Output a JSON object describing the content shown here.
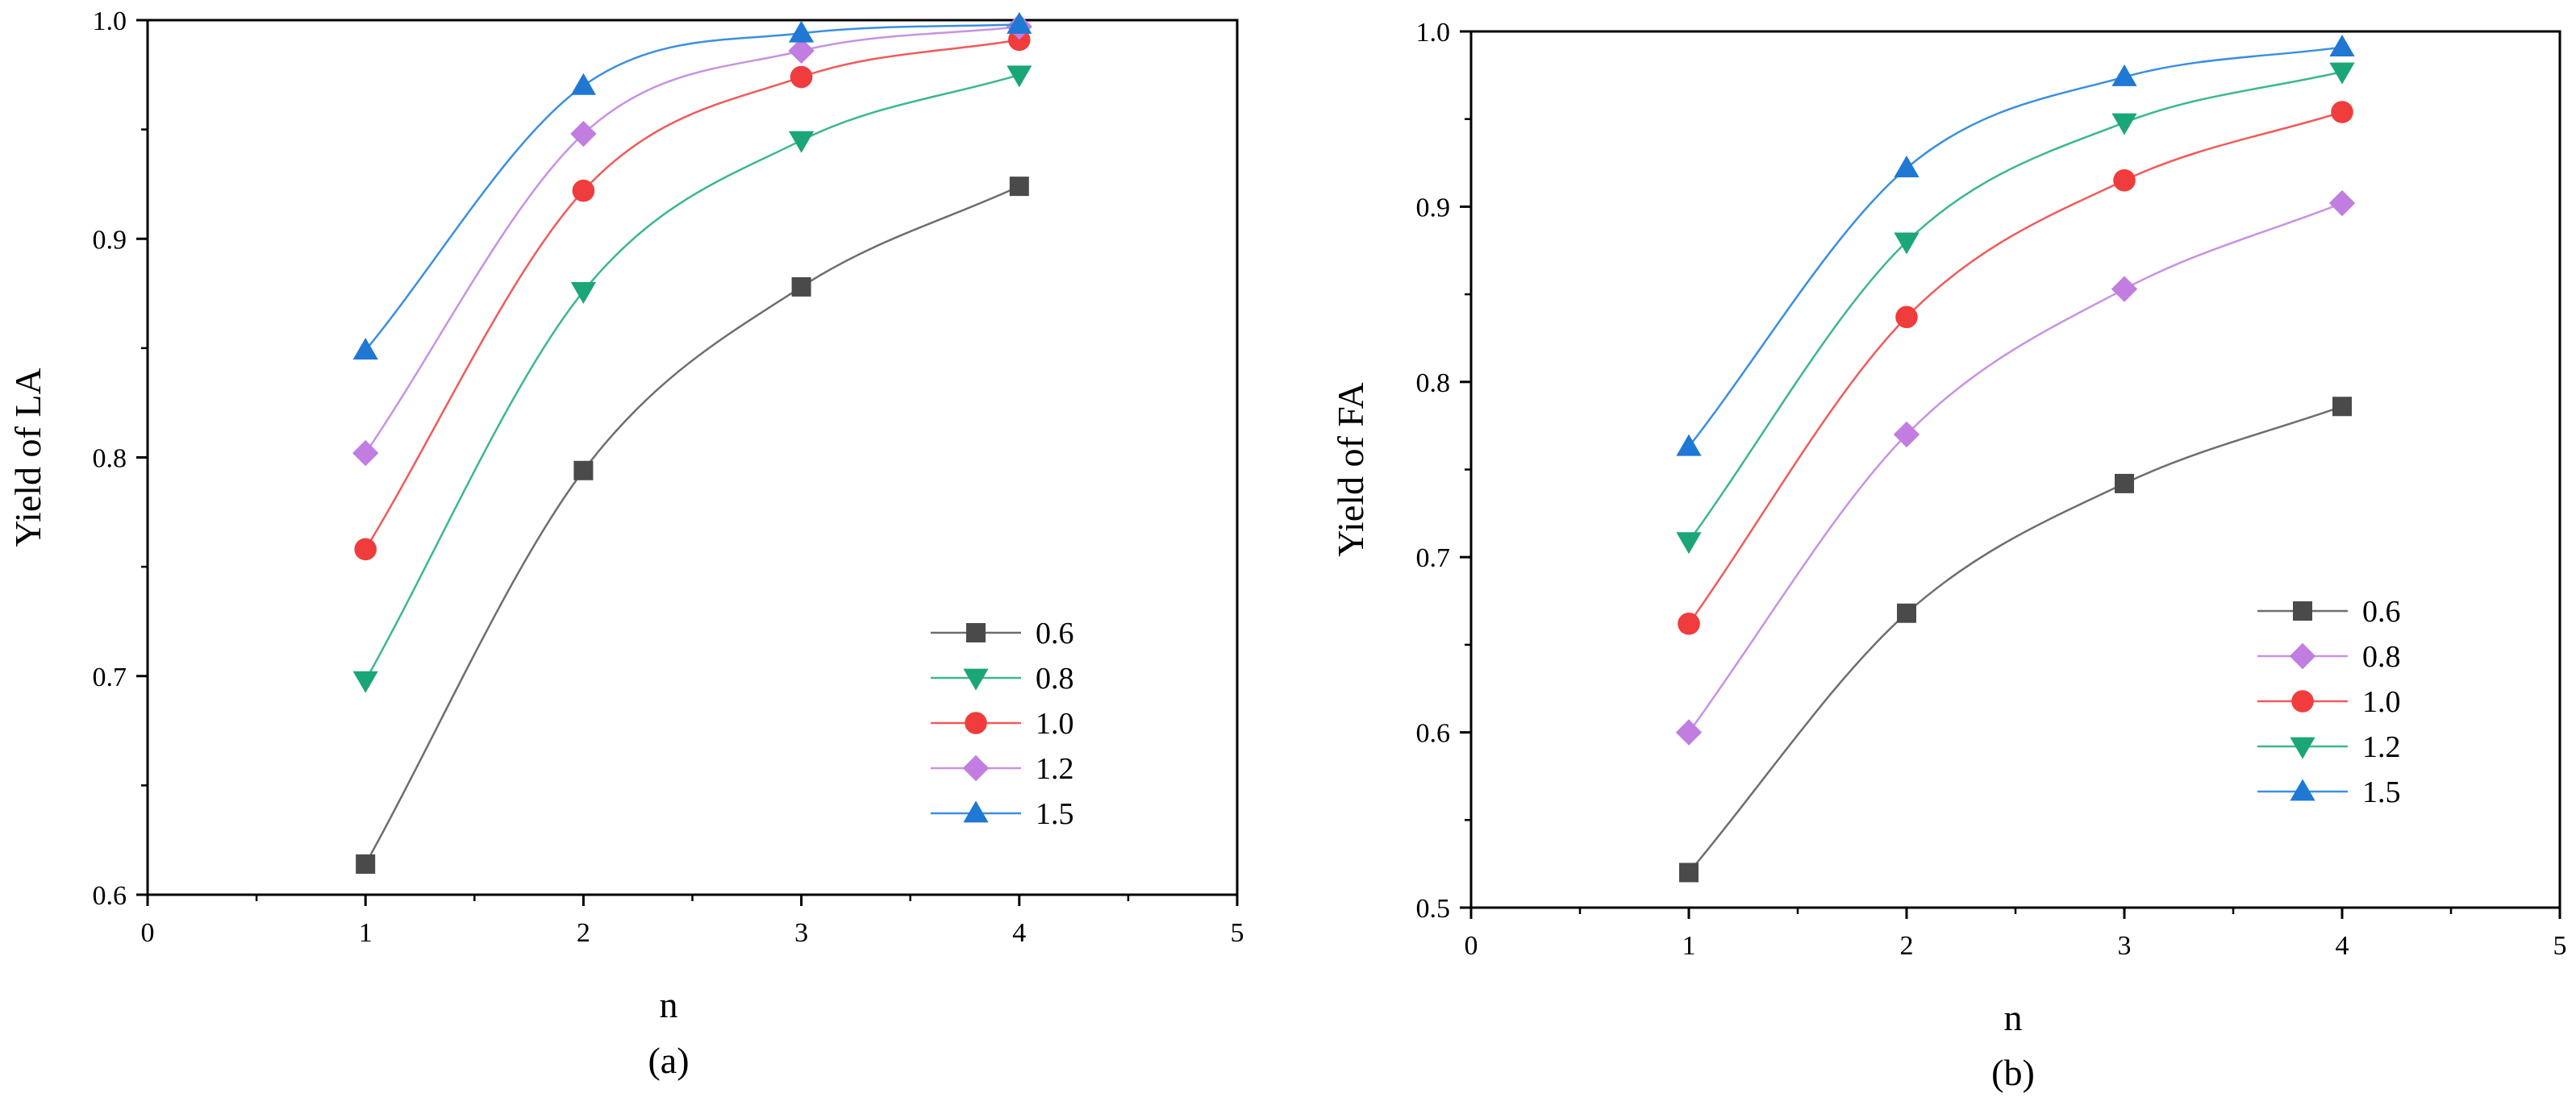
{
  "chart_data": [
    {
      "id": "a",
      "type": "line",
      "xlabel": "n",
      "ylabel": "Yield of LA",
      "caption": "(a)",
      "xlim": [
        0,
        5
      ],
      "ylim": [
        0.6,
        1.0
      ],
      "xticks": [
        0,
        1,
        2,
        3,
        4,
        5
      ],
      "yticks": [
        0.6,
        0.7,
        0.8,
        0.9,
        1.0
      ],
      "xtick_labels": [
        "0",
        "1",
        "2",
        "3",
        "4",
        "5"
      ],
      "ytick_labels": [
        "0.6",
        "0.7",
        "0.8",
        "0.9",
        "1.0"
      ],
      "x": [
        1,
        2,
        3,
        4
      ],
      "legend_position": "bottom-right",
      "series": [
        {
          "name": "0.6",
          "marker": "square",
          "color": "#4a4a4a",
          "line_color": "#6e6e6e",
          "values": [
            0.614,
            0.794,
            0.878,
            0.924
          ]
        },
        {
          "name": "0.8",
          "marker": "triangle-down",
          "color": "#1aa678",
          "line_color": "#3cb88a",
          "values": [
            0.698,
            0.876,
            0.945,
            0.975
          ]
        },
        {
          "name": "1.0",
          "marker": "circle",
          "color": "#f03c3c",
          "line_color": "#f25a5a",
          "values": [
            0.758,
            0.922,
            0.974,
            0.991
          ]
        },
        {
          "name": "1.2",
          "marker": "diamond",
          "color": "#c17ee0",
          "line_color": "#c992e4",
          "values": [
            0.802,
            0.948,
            0.986,
            0.997
          ]
        },
        {
          "name": "1.5",
          "marker": "triangle-up",
          "color": "#1f78d4",
          "line_color": "#3a8fe0",
          "values": [
            0.849,
            0.97,
            0.994,
            0.998
          ]
        }
      ]
    },
    {
      "id": "b",
      "type": "line",
      "xlabel": "n",
      "ylabel": "Yield of FA",
      "caption": "(b)",
      "xlim": [
        0,
        5
      ],
      "ylim": [
        0.5,
        1.0
      ],
      "xticks": [
        0,
        1,
        2,
        3,
        4,
        5
      ],
      "yticks": [
        0.5,
        0.6,
        0.7,
        0.8,
        0.9,
        1.0
      ],
      "xtick_labels": [
        "0",
        "1",
        "2",
        "3",
        "4",
        "5"
      ],
      "ytick_labels": [
        "0.5",
        "0.6",
        "0.7",
        "0.8",
        "0.9",
        "1.0"
      ],
      "x": [
        1,
        2,
        3,
        4
      ],
      "legend_position": "bottom-right",
      "series": [
        {
          "name": "0.6",
          "marker": "square",
          "color": "#4a4a4a",
          "line_color": "#6e6e6e",
          "values": [
            0.52,
            0.668,
            0.742,
            0.786
          ]
        },
        {
          "name": "0.8",
          "marker": "diamond",
          "color": "#c17ee0",
          "line_color": "#c992e4",
          "values": [
            0.6,
            0.77,
            0.853,
            0.902
          ]
        },
        {
          "name": "1.0",
          "marker": "circle",
          "color": "#f03c3c",
          "line_color": "#f25a5a",
          "values": [
            0.662,
            0.837,
            0.915,
            0.954
          ]
        },
        {
          "name": "1.2",
          "marker": "triangle-down",
          "color": "#1aa678",
          "line_color": "#3cb88a",
          "values": [
            0.709,
            0.88,
            0.948,
            0.977
          ]
        },
        {
          "name": "1.5",
          "marker": "triangle-up",
          "color": "#1f78d4",
          "line_color": "#3a8fe0",
          "values": [
            0.763,
            0.922,
            0.974,
            0.991
          ]
        }
      ]
    }
  ]
}
